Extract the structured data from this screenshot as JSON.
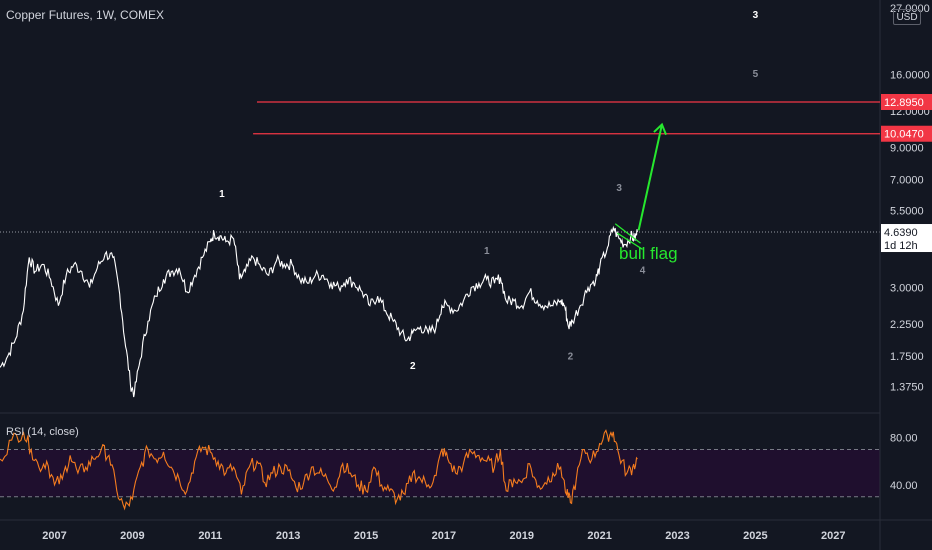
{
  "header": {
    "title": "Copper Futures, 1W, COMEX",
    "currency": "USD"
  },
  "colors": {
    "background": "#131722",
    "price_line": "#ffffff",
    "resistance": "#f23645",
    "arrow": "#26e82e",
    "rsi_line": "#f57c1f",
    "rsi_band": "#1f0f2e",
    "axis_text": "#d1d4dc",
    "wave_label_minor": "#8a8e99"
  },
  "chart_data": [
    {
      "type": "line",
      "name": "price",
      "scale": "log",
      "ylim": [
        1.2,
        27
      ],
      "xlim": [
        2005.6,
        2028.2
      ],
      "x_ticks": [
        "2007",
        "2009",
        "2011",
        "2013",
        "2015",
        "2017",
        "2019",
        "2021",
        "2023",
        "2025",
        "2027"
      ],
      "y_ticks": [
        "27.0000",
        "16.0000",
        "12.0000",
        "9.0000",
        "7.0000",
        "5.5000",
        "3.0000",
        "2.2500",
        "1.7500",
        "1.3750"
      ],
      "points": [
        [
          2005.6,
          1.6
        ],
        [
          2005.8,
          1.75
        ],
        [
          2006.0,
          2.0
        ],
        [
          2006.2,
          2.5
        ],
        [
          2006.35,
          3.8
        ],
        [
          2006.5,
          3.4
        ],
        [
          2006.7,
          3.6
        ],
        [
          2006.9,
          3.2
        ],
        [
          2007.1,
          2.6
        ],
        [
          2007.3,
          3.3
        ],
        [
          2007.5,
          3.6
        ],
        [
          2007.7,
          3.4
        ],
        [
          2007.9,
          3.0
        ],
        [
          2008.1,
          3.5
        ],
        [
          2008.3,
          3.9
        ],
        [
          2008.5,
          3.8
        ],
        [
          2008.65,
          3.0
        ],
        [
          2008.8,
          2.0
        ],
        [
          2008.95,
          1.4
        ],
        [
          2009.05,
          1.3
        ],
        [
          2009.2,
          1.7
        ],
        [
          2009.4,
          2.3
        ],
        [
          2009.6,
          2.8
        ],
        [
          2009.8,
          3.2
        ],
        [
          2010.0,
          3.4
        ],
        [
          2010.2,
          3.5
        ],
        [
          2010.4,
          2.9
        ],
        [
          2010.6,
          3.3
        ],
        [
          2010.8,
          3.8
        ],
        [
          2011.0,
          4.3
        ],
        [
          2011.1,
          4.6
        ],
        [
          2011.25,
          4.5
        ],
        [
          2011.4,
          4.3
        ],
        [
          2011.6,
          4.4
        ],
        [
          2011.75,
          3.2
        ],
        [
          2011.9,
          3.4
        ],
        [
          2012.1,
          3.8
        ],
        [
          2012.3,
          3.5
        ],
        [
          2012.5,
          3.3
        ],
        [
          2012.7,
          3.7
        ],
        [
          2012.9,
          3.6
        ],
        [
          2013.1,
          3.6
        ],
        [
          2013.3,
          3.2
        ],
        [
          2013.5,
          3.1
        ],
        [
          2013.7,
          3.3
        ],
        [
          2013.9,
          3.3
        ],
        [
          2014.1,
          3.1
        ],
        [
          2014.3,
          3.0
        ],
        [
          2014.5,
          3.2
        ],
        [
          2014.7,
          3.1
        ],
        [
          2014.9,
          2.9
        ],
        [
          2015.1,
          2.6
        ],
        [
          2015.3,
          2.8
        ],
        [
          2015.5,
          2.5
        ],
        [
          2015.7,
          2.3
        ],
        [
          2015.9,
          2.1
        ],
        [
          2016.05,
          1.98
        ],
        [
          2016.2,
          2.1
        ],
        [
          2016.4,
          2.2
        ],
        [
          2016.6,
          2.1
        ],
        [
          2016.8,
          2.2
        ],
        [
          2016.95,
          2.6
        ],
        [
          2017.1,
          2.6
        ],
        [
          2017.3,
          2.5
        ],
        [
          2017.5,
          2.7
        ],
        [
          2017.7,
          3.0
        ],
        [
          2017.9,
          3.1
        ],
        [
          2018.1,
          3.2
        ],
        [
          2018.3,
          3.1
        ],
        [
          2018.45,
          3.25
        ],
        [
          2018.6,
          2.7
        ],
        [
          2018.8,
          2.7
        ],
        [
          2019.0,
          2.6
        ],
        [
          2019.2,
          2.9
        ],
        [
          2019.4,
          2.7
        ],
        [
          2019.6,
          2.6
        ],
        [
          2019.8,
          2.6
        ],
        [
          2020.0,
          2.7
        ],
        [
          2020.1,
          2.6
        ],
        [
          2020.2,
          2.2
        ],
        [
          2020.3,
          2.3
        ],
        [
          2020.5,
          2.6
        ],
        [
          2020.7,
          3.0
        ],
        [
          2020.9,
          3.2
        ],
        [
          2021.0,
          3.5
        ],
        [
          2021.2,
          4.1
        ],
        [
          2021.35,
          4.8
        ],
        [
          2021.5,
          4.4
        ],
        [
          2021.65,
          4.2
        ],
        [
          2021.8,
          4.5
        ],
        [
          2021.9,
          4.4
        ],
        [
          2021.97,
          4.639
        ]
      ],
      "resistance_levels": [
        {
          "value": 12.895,
          "label": "12.8950",
          "x_start": 2012.2
        },
        {
          "value": 10.047,
          "label": "10.0470",
          "x_start": 2012.1
        }
      ],
      "last_price": {
        "value": 4.639,
        "label": "4.6390",
        "countdown": "1d 12h"
      },
      "annotations": [
        {
          "text": "bull flag",
          "x": 2022.25,
          "y": 3.75,
          "color": "#26e82e",
          "size": 17
        },
        {
          "text": "1",
          "x": 2011.3,
          "y": 6.1,
          "color": "#ffffff",
          "size": 10
        },
        {
          "text": "2",
          "x": 2016.2,
          "y": 1.58,
          "color": "#ffffff",
          "size": 10
        },
        {
          "text": "3",
          "x": 2025.0,
          "y": 25.0,
          "color": "#ffffff",
          "size": 10
        },
        {
          "text": "1",
          "x": 2018.1,
          "y": 3.9,
          "color": "#8a8e99",
          "size": 10
        },
        {
          "text": "2",
          "x": 2020.25,
          "y": 1.7,
          "color": "#8a8e99",
          "size": 10
        },
        {
          "text": "3",
          "x": 2021.5,
          "y": 6.4,
          "color": "#8a8e99",
          "size": 10
        },
        {
          "text": "4",
          "x": 2022.1,
          "y": 3.35,
          "color": "#8a8e99",
          "size": 10
        },
        {
          "text": "5",
          "x": 2025.0,
          "y": 15.7,
          "color": "#8a8e99",
          "size": 10
        }
      ],
      "arrow": {
        "from": [
          2022.0,
          4.7
        ],
        "to": [
          2022.6,
          10.8
        ]
      }
    },
    {
      "type": "line",
      "name": "RSI (14, close)",
      "ylim": [
        12,
        95
      ],
      "y_ticks": [
        "80.00",
        "40.00"
      ],
      "bands": [
        30,
        70
      ],
      "points": [
        [
          2005.6,
          62
        ],
        [
          2005.9,
          78
        ],
        [
          2006.2,
          85
        ],
        [
          2006.4,
          70
        ],
        [
          2006.6,
          55
        ],
        [
          2006.8,
          60
        ],
        [
          2007.0,
          40
        ],
        [
          2007.2,
          45
        ],
        [
          2007.4,
          65
        ],
        [
          2007.6,
          50
        ],
        [
          2007.8,
          55
        ],
        [
          2008.0,
          62
        ],
        [
          2008.2,
          70
        ],
        [
          2008.4,
          65
        ],
        [
          2008.6,
          35
        ],
        [
          2008.8,
          20
        ],
        [
          2009.0,
          28
        ],
        [
          2009.2,
          55
        ],
        [
          2009.4,
          70
        ],
        [
          2009.6,
          62
        ],
        [
          2009.8,
          68
        ],
        [
          2010.0,
          55
        ],
        [
          2010.2,
          45
        ],
        [
          2010.4,
          35
        ],
        [
          2010.6,
          60
        ],
        [
          2010.8,
          72
        ],
        [
          2011.0,
          68
        ],
        [
          2011.2,
          60
        ],
        [
          2011.4,
          50
        ],
        [
          2011.6,
          55
        ],
        [
          2011.8,
          32
        ],
        [
          2012.0,
          55
        ],
        [
          2012.2,
          60
        ],
        [
          2012.4,
          42
        ],
        [
          2012.6,
          50
        ],
        [
          2012.8,
          55
        ],
        [
          2013.0,
          52
        ],
        [
          2013.2,
          38
        ],
        [
          2013.4,
          42
        ],
        [
          2013.6,
          55
        ],
        [
          2013.8,
          50
        ],
        [
          2014.0,
          45
        ],
        [
          2014.2,
          38
        ],
        [
          2014.4,
          58
        ],
        [
          2014.6,
          50
        ],
        [
          2014.8,
          40
        ],
        [
          2015.0,
          35
        ],
        [
          2015.2,
          55
        ],
        [
          2015.4,
          40
        ],
        [
          2015.6,
          35
        ],
        [
          2015.8,
          28
        ],
        [
          2016.0,
          32
        ],
        [
          2016.2,
          50
        ],
        [
          2016.4,
          45
        ],
        [
          2016.6,
          40
        ],
        [
          2016.8,
          48
        ],
        [
          2016.95,
          70
        ],
        [
          2017.1,
          62
        ],
        [
          2017.3,
          50
        ],
        [
          2017.5,
          58
        ],
        [
          2017.7,
          68
        ],
        [
          2017.9,
          65
        ],
        [
          2018.1,
          60
        ],
        [
          2018.3,
          55
        ],
        [
          2018.45,
          70
        ],
        [
          2018.6,
          35
        ],
        [
          2018.8,
          45
        ],
        [
          2019.0,
          42
        ],
        [
          2019.2,
          58
        ],
        [
          2019.4,
          38
        ],
        [
          2019.6,
          42
        ],
        [
          2019.8,
          50
        ],
        [
          2020.0,
          55
        ],
        [
          2020.15,
          32
        ],
        [
          2020.25,
          25
        ],
        [
          2020.4,
          45
        ],
        [
          2020.6,
          70
        ],
        [
          2020.8,
          62
        ],
        [
          2021.0,
          75
        ],
        [
          2021.2,
          82
        ],
        [
          2021.35,
          85
        ],
        [
          2021.5,
          65
        ],
        [
          2021.7,
          50
        ],
        [
          2021.85,
          55
        ],
        [
          2021.97,
          62
        ]
      ]
    }
  ]
}
